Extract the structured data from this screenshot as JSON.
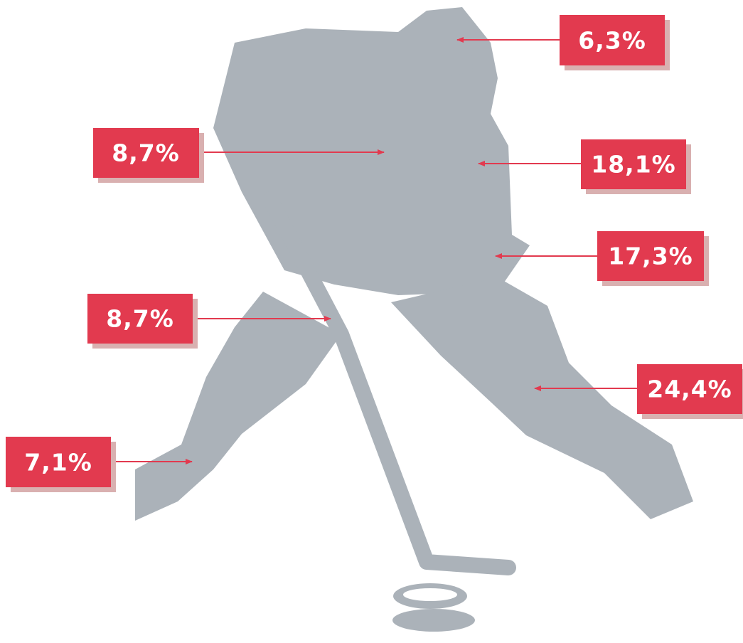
{
  "callouts": [
    {
      "text": "6,3%"
    },
    {
      "text": "8,7%"
    },
    {
      "text": "18,1%"
    },
    {
      "text": "17,3%"
    },
    {
      "text": "8,7%"
    },
    {
      "text": "24,4%"
    },
    {
      "text": "7,1%"
    }
  ]
}
